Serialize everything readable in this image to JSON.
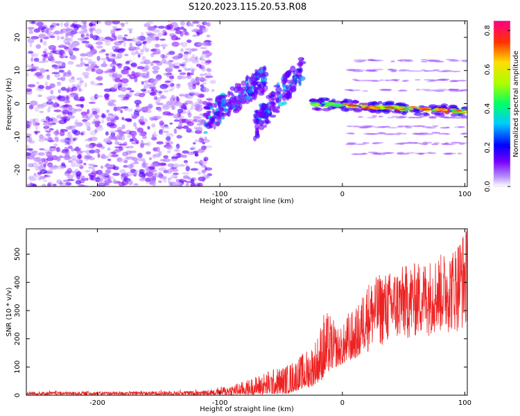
{
  "title": "S120.2023.115.20.53.R08",
  "colors": {
    "snr_line": "#ee2222",
    "spectro_low": "#8800ff",
    "spectro_mid": "#00e5ff",
    "spectro_high": "#ff0000"
  },
  "chart_data": [
    {
      "type": "heatmap",
      "xlabel": "Height of straight line (km)",
      "ylabel": "Frequency (Hz)",
      "xlim": [
        -258,
        102
      ],
      "ylim": [
        -25,
        25
      ],
      "xticks": [
        -200,
        -100,
        0,
        100
      ],
      "yticks": [
        -20,
        -10,
        0,
        10,
        20
      ],
      "colorbar": {
        "label": "Normalized spectral amplitude",
        "range": [
          0.0,
          0.85
        ],
        "ticks": [
          0.0,
          0.2,
          0.4,
          0.6,
          0.8
        ]
      },
      "features": [
        {
          "region": "noise",
          "x": [
            -258,
            -108
          ],
          "y": [
            -25,
            25
          ],
          "amplitude": 0.03
        },
        {
          "region": "diagonal_band_1",
          "x": [
            -112,
            -62
          ],
          "y_start": -5,
          "y_end": 8,
          "amplitude": 0.15
        },
        {
          "region": "diagonal_band_2",
          "x": [
            -72,
            -32
          ],
          "y_start": -7,
          "y_end": 11,
          "amplitude": 0.1
        },
        {
          "region": "main_carrier",
          "x": [
            -25,
            102
          ],
          "y_start": 0,
          "y_end": -2.4,
          "amplitude": 0.84
        },
        {
          "region": "harmonics",
          "x": [
            5,
            102
          ],
          "y": [
            -15,
            13
          ],
          "amplitude": 0.02
        }
      ]
    },
    {
      "type": "line",
      "xlabel": "Height of straight line (km)",
      "ylabel": "SNR (10 * v/v)",
      "xlim": [
        -258,
        102
      ],
      "ylim": [
        0,
        590
      ],
      "xticks": [
        -200,
        -100,
        0,
        100
      ],
      "yticks": [
        0,
        100,
        200,
        300,
        400,
        500
      ],
      "series": [
        {
          "envelope_x": [
            -258,
            -200,
            -150,
            -120,
            -100,
            -80,
            -60,
            -45,
            -35,
            -25,
            -20,
            -15,
            -10,
            -5,
            0,
            5,
            10,
            15,
            20,
            25,
            30,
            40,
            50,
            60,
            70,
            80,
            90,
            95,
            100
          ],
          "envelope_low": [
            0,
            0,
            0,
            0,
            0,
            2,
            3,
            5,
            20,
            30,
            45,
            60,
            90,
            100,
            110,
            120,
            130,
            140,
            150,
            160,
            170,
            180,
            190,
            200,
            210,
            215,
            220,
            225,
            230
          ],
          "envelope_high": [
            18,
            18,
            20,
            22,
            30,
            50,
            90,
            110,
            140,
            180,
            220,
            300,
            290,
            250,
            240,
            300,
            300,
            340,
            400,
            410,
            430,
            440,
            460,
            470,
            480,
            500,
            520,
            560,
            590
          ]
        }
      ]
    }
  ]
}
